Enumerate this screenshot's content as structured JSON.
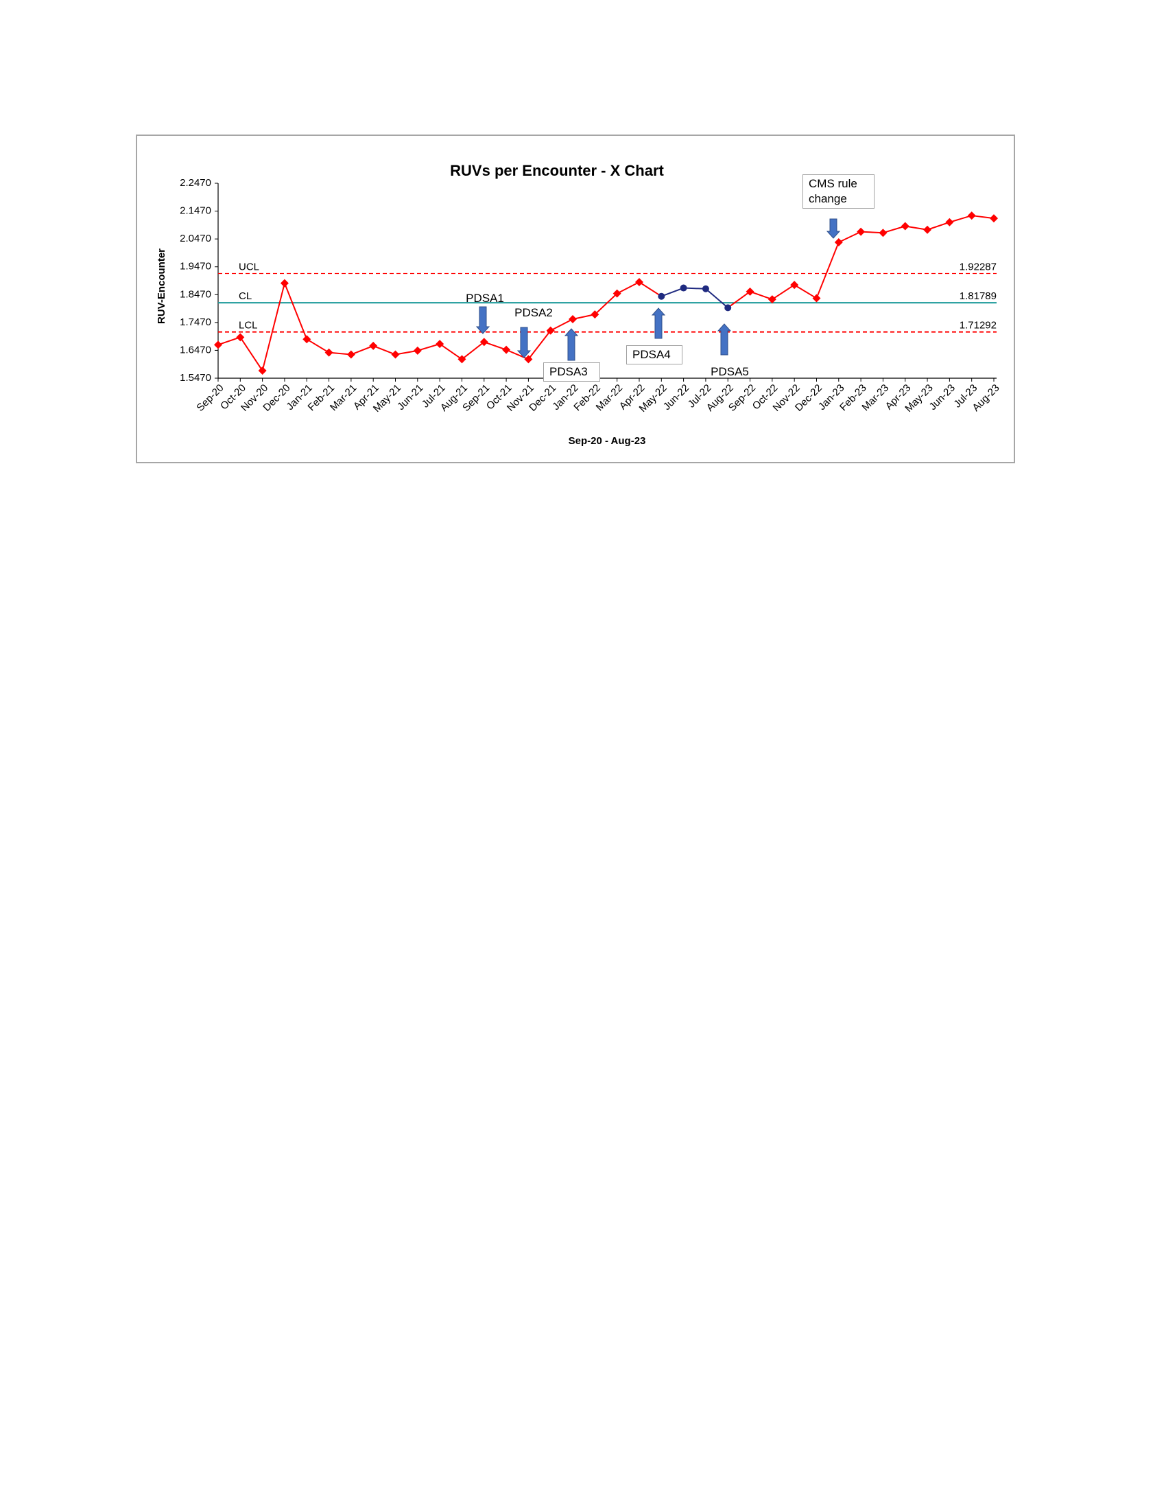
{
  "chart_data": {
    "type": "line",
    "title": "RUVs per Encounter - X Chart",
    "x_label": "Sep-20 - Aug-23",
    "y_label": "RUV-Encounter",
    "categories": [
      "Sep-20",
      "Oct-20",
      "Nov-20",
      "Dec-20",
      "Jan-21",
      "Feb-21",
      "Mar-21",
      "Apr-21",
      "May-21",
      "Jun-21",
      "Jul-21",
      "Aug-21",
      "Sep-21",
      "Oct-21",
      "Nov-21",
      "Dec-21",
      "Jan-22",
      "Feb-22",
      "Mar-22",
      "Apr-22",
      "May-22",
      "Jun-22",
      "Jul-22",
      "Aug-22",
      "Sep-22",
      "Oct-22",
      "Nov-22",
      "Dec-22",
      "Jan-23",
      "Feb-23",
      "Mar-23",
      "Apr-23",
      "May-23",
      "Jun-23",
      "Jul-23",
      "Aug-23"
    ],
    "values": [
      1.667,
      1.694,
      1.574,
      1.888,
      1.687,
      1.639,
      1.632,
      1.663,
      1.632,
      1.646,
      1.67,
      1.615,
      1.677,
      1.649,
      1.615,
      1.718,
      1.759,
      1.776,
      1.851,
      1.892,
      1.841,
      1.871,
      1.868,
      1.8,
      1.858,
      1.83,
      1.882,
      1.834,
      2.035,
      2.073,
      2.069,
      2.093,
      2.08,
      2.107,
      2.131,
      2.121
    ],
    "color": "#ff0000",
    "point_colors": [
      "#ff0000",
      "#ff0000",
      "#ff0000",
      "#ff0000",
      "#ff0000",
      "#ff0000",
      "#ff0000",
      "#ff0000",
      "#ff0000",
      "#ff0000",
      "#ff0000",
      "#ff0000",
      "#ff0000",
      "#ff0000",
      "#ff0000",
      "#ff0000",
      "#ff0000",
      "#ff0000",
      "#ff0000",
      "#ff0000",
      "#1f2a80",
      "#1f2a80",
      "#1f2a80",
      "#1f2a80",
      "#ff0000",
      "#ff0000",
      "#ff0000",
      "#ff0000",
      "#ff0000",
      "#ff0000",
      "#ff0000",
      "#ff0000",
      "#ff0000",
      "#ff0000",
      "#ff0000",
      "#ff0000"
    ],
    "ylim": [
      1.547,
      2.247
    ],
    "yticks": [
      {
        "value": 1.547,
        "label": "1.5470"
      },
      {
        "value": 1.647,
        "label": "1.6470"
      },
      {
        "value": 1.747,
        "label": "1.7470"
      },
      {
        "value": 1.847,
        "label": "1.8470"
      },
      {
        "value": 1.947,
        "label": "1.9470"
      },
      {
        "value": 2.047,
        "label": "2.0470"
      },
      {
        "value": 2.147,
        "label": "2.1470"
      },
      {
        "value": 2.247,
        "label": "2.2470"
      }
    ],
    "control_lines": [
      {
        "name": "UCL",
        "value": 1.92287,
        "color": "#ff0000",
        "dashed": true
      },
      {
        "name": "CL",
        "value": 1.81789,
        "color": "#1a9a9a",
        "dashed": false
      },
      {
        "name": "LCL",
        "value": 1.71292,
        "color": "#ff0000",
        "dashed": true
      }
    ],
    "annotations": [
      "PDSA1",
      "PDSA2",
      "PDSA3",
      "PDSA4",
      "PDSA5",
      "CMS rule change"
    ]
  }
}
